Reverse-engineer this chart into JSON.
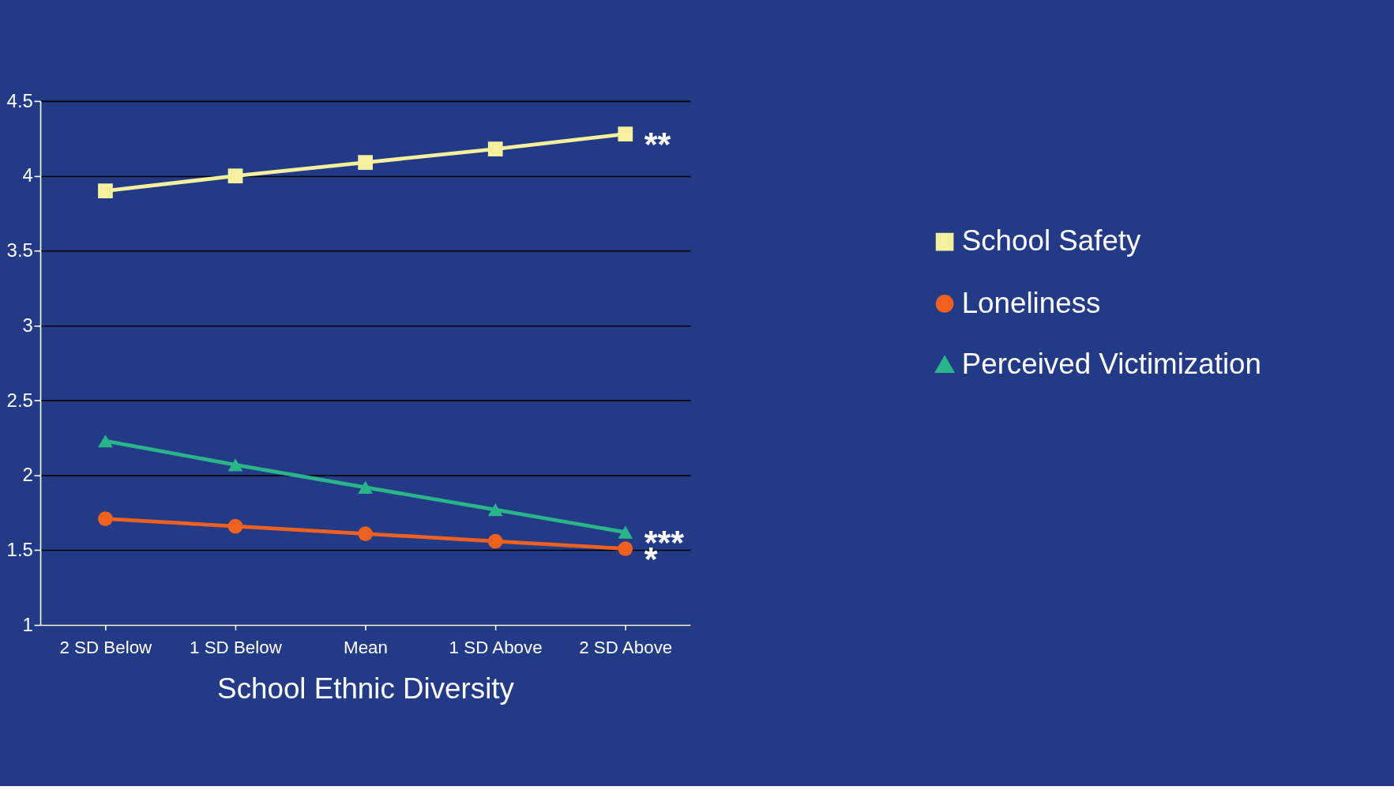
{
  "chart_data": {
    "type": "line",
    "xlabel": "School Ethnic Diversity",
    "categories": [
      "2 SD Below",
      "1 SD Below",
      "Mean",
      "1 SD Above",
      "2 SD Above"
    ],
    "series": [
      {
        "name": "School Safety",
        "color": "#f5f09e",
        "marker": "square",
        "values": [
          3.9,
          4.0,
          4.09,
          4.18,
          4.28
        ]
      },
      {
        "name": "Loneliness",
        "color": "#f0601e",
        "marker": "circle",
        "values": [
          1.71,
          1.66,
          1.61,
          1.56,
          1.51
        ]
      },
      {
        "name": "Perceived Victimization",
        "color": "#2ab48a",
        "marker": "triangle",
        "values": [
          2.23,
          2.07,
          1.92,
          1.77,
          1.62
        ]
      }
    ],
    "ylim": [
      1,
      4.5
    ],
    "yticks": [
      1,
      1.5,
      2,
      2.5,
      3,
      3.5,
      4,
      4.5
    ],
    "grid": "y",
    "legend": "right",
    "annotations": [
      {
        "text": "**",
        "x": "2 SD Above",
        "y": 4.28
      },
      {
        "text": "***",
        "x": "2 SD Above",
        "y": 1.62
      },
      {
        "text": "*",
        "x": "2 SD Above",
        "y": 1.51
      }
    ]
  }
}
